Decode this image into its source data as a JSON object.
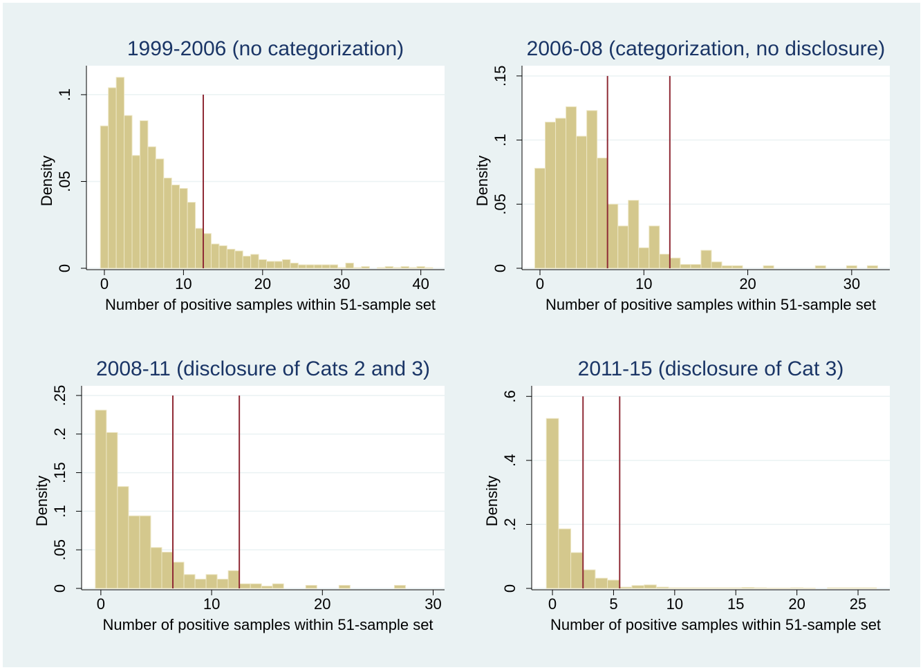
{
  "chart_data": [
    {
      "type": "histogram",
      "title": "1999-2006 (no categorization)",
      "xlabel": "Number of positive samples within 51-sample set",
      "ylabel": "Density",
      "color": "#d4c88d",
      "line_color": "#8f2a35",
      "bins": [
        -0.5,
        0.5,
        1.5,
        2.5,
        3.5,
        4.5,
        5.5,
        6.5,
        7.5,
        8.5,
        9.5,
        10.5,
        11.5,
        12.5,
        13.5,
        14.5,
        15.5,
        16.5,
        17.5,
        18.5,
        19.5,
        20.5,
        21.5,
        22.5,
        23.5,
        24.5,
        25.5,
        26.5,
        27.5,
        28.5,
        29.5,
        30.5,
        31.5,
        32.5,
        33.5,
        34.5,
        35.5,
        36.5,
        37.5,
        38.5,
        39.5,
        40.5,
        41.5
      ],
      "values": [
        0.082,
        0.104,
        0.11,
        0.088,
        0.065,
        0.085,
        0.07,
        0.063,
        0.052,
        0.048,
        0.046,
        0.038,
        0.023,
        0.02,
        0.014,
        0.013,
        0.011,
        0.01,
        0.007,
        0.008,
        0.005,
        0.004,
        0.004,
        0.005,
        0.003,
        0.002,
        0.002,
        0.002,
        0.002,
        0.002,
        0.0004,
        0.003,
        0.0004,
        0.001,
        0,
        0.0004,
        0.001,
        0.0004,
        0.001,
        0.0004,
        0.001,
        0.0004
      ],
      "vlines": [
        {
          "x": 12.5,
          "ymax": 0.1
        }
      ],
      "xlim": [
        -2.27,
        43.0
      ],
      "ylim": [
        0,
        0.1167
      ],
      "xticks": [
        0,
        10,
        20,
        30,
        40
      ],
      "yticks": [
        0,
        {
          "value": 0.05,
          "label": ".05"
        },
        {
          "value": 0.1,
          "label": ".1"
        }
      ],
      "grid": true
    },
    {
      "type": "histogram",
      "title": "2006-08 (categorization, no disclosure)",
      "xlabel": "Number of positive samples within 51-sample set",
      "ylabel": "Density",
      "color": "#d4c88d",
      "line_color": "#8f2a35",
      "bins": [
        -0.5,
        0.5,
        1.5,
        2.5,
        3.5,
        4.5,
        5.5,
        6.5,
        7.5,
        8.5,
        9.5,
        10.5,
        11.5,
        12.5,
        13.5,
        14.5,
        15.5,
        16.5,
        17.5,
        18.5,
        19.5,
        20.5,
        21.5,
        22.5,
        23.5,
        24.5,
        25.5,
        26.5,
        27.5,
        28.5,
        29.5,
        30.5,
        31.5,
        32.5
      ],
      "values": [
        0.078,
        0.114,
        0.117,
        0.126,
        0.103,
        0.123,
        0.086,
        0.05,
        0.033,
        0.053,
        0.016,
        0.033,
        0.011,
        0.008,
        0.003,
        0.003,
        0.014,
        0.005,
        0.002,
        0.002,
        0,
        0,
        0.002,
        0,
        0,
        0,
        0,
        0.002,
        0,
        0,
        0.002,
        0,
        0.002
      ],
      "vlines": [
        {
          "x": 6.5,
          "ymax": 0.15
        },
        {
          "x": 12.5,
          "ymax": 0.15
        }
      ],
      "xlim": [
        -1.73,
        33.67
      ],
      "ylim": [
        0,
        0.158
      ],
      "xticks": [
        0,
        10,
        20,
        30
      ],
      "yticks": [
        0,
        {
          "value": 0.05,
          "label": ".05"
        },
        {
          "value": 0.1,
          "label": ".1"
        },
        {
          "value": 0.15,
          "label": ".15"
        }
      ],
      "grid": true
    },
    {
      "type": "histogram",
      "title": "2008-11 (disclosure of Cats 2 and 3)",
      "xlabel": "Number of positive samples within 51-sample set",
      "ylabel": "Density",
      "color": "#d4c88d",
      "line_color": "#8f2a35",
      "bins": [
        -0.5,
        0.5,
        1.5,
        2.5,
        3.5,
        4.5,
        5.5,
        6.5,
        7.5,
        8.5,
        9.5,
        10.5,
        11.5,
        12.5,
        13.5,
        14.5,
        15.5,
        16.5,
        17.5,
        18.5,
        19.5,
        20.5,
        21.5,
        22.5,
        23.5,
        24.5,
        25.5,
        26.5,
        27.5,
        28.5,
        29.5
      ],
      "values": [
        0.231,
        0.202,
        0.132,
        0.094,
        0.094,
        0.053,
        0.047,
        0.034,
        0.018,
        0.012,
        0.018,
        0.012,
        0.023,
        0.006,
        0.006,
        0.003,
        0.006,
        0,
        0,
        0.004,
        0,
        0,
        0.004,
        0,
        0,
        0,
        0,
        0.004,
        0,
        0
      ],
      "vlines": [
        {
          "x": 6.5,
          "ymax": 0.25
        },
        {
          "x": 12.5,
          "ymax": 0.25
        }
      ],
      "xlim": [
        -1.74,
        31.03
      ],
      "ylim": [
        0,
        0.2625
      ],
      "xticks": [
        0,
        10,
        20,
        30
      ],
      "yticks": [
        0,
        {
          "value": 0.05,
          "label": ".05"
        },
        {
          "value": 0.1,
          "label": ".1"
        },
        {
          "value": 0.15,
          "label": ".15"
        },
        {
          "value": 0.2,
          "label": ".2"
        },
        {
          "value": 0.25,
          "label": ".25"
        }
      ],
      "grid": true
    },
    {
      "type": "histogram",
      "title": "2011-15 (disclosure of Cat 3)",
      "xlabel": "Number of positive samples within 51-sample set",
      "ylabel": "Density",
      "color": "#d4c88d",
      "line_color": "#8f2a35",
      "bins": [
        -0.5,
        0.5,
        1.5,
        2.5,
        3.5,
        4.5,
        5.5,
        6.5,
        7.5,
        8.5,
        9.5,
        10.5,
        11.5,
        12.5,
        13.5,
        14.5,
        15.5,
        16.5,
        17.5,
        18.5,
        19.5,
        20.5,
        21.5,
        22.5,
        23.5,
        24.5,
        25.5,
        26.5
      ],
      "values": [
        0.531,
        0.186,
        0.112,
        0.058,
        0.032,
        0.026,
        0.004,
        0.009,
        0.011,
        0.004,
        0.002,
        0.002,
        0.002,
        0.002,
        0.002,
        0.002,
        0.003,
        0.002,
        0.001,
        0.001,
        0.002,
        0.001,
        0,
        0.002,
        0.002,
        0.002,
        0.002
      ],
      "vlines": [
        {
          "x": 2.5,
          "ymax": 0.6
        },
        {
          "x": 5.5,
          "ymax": 0.6
        }
      ],
      "xlim": [
        -1.7,
        27.6
      ],
      "ylim": [
        0,
        0.633
      ],
      "xticks": [
        0,
        5,
        10,
        15,
        20,
        25
      ],
      "yticks": [
        0,
        {
          "value": 0.2,
          "label": ".2"
        },
        {
          "value": 0.4,
          "label": ".4"
        },
        {
          "value": 0.6,
          "label": ".6"
        }
      ],
      "grid": true
    }
  ]
}
